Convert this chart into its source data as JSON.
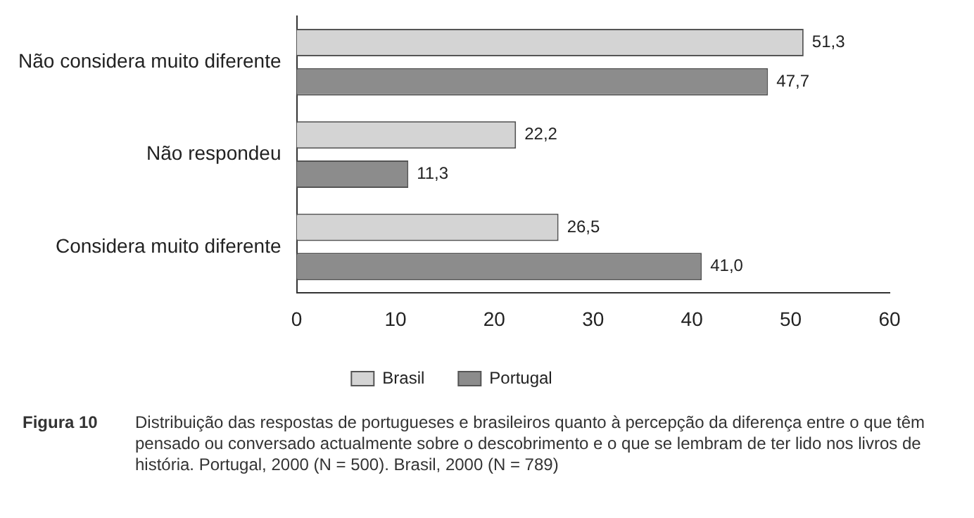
{
  "chart_data": {
    "type": "bar",
    "orientation": "horizontal",
    "categories": [
      "Não considera muito diferente",
      "Não respondeu",
      "Considera muito diferente"
    ],
    "series": [
      {
        "name": "Brasil",
        "color": "#d4d4d4",
        "values": [
          51.3,
          22.2,
          26.5
        ],
        "value_labels": [
          "51,3",
          "22,2",
          "26,5"
        ]
      },
      {
        "name": "Portugal",
        "color": "#8c8c8c",
        "values": [
          47.7,
          11.3,
          41.0
        ],
        "value_labels": [
          "47,7",
          "11,3",
          "41,0"
        ]
      }
    ],
    "xlim": [
      0,
      60
    ],
    "xticks": [
      0,
      10,
      20,
      30,
      40,
      50,
      60
    ],
    "grid": false,
    "legend": "bottom",
    "annotations": [
      "Figura 10",
      "Distribuição das respostas de portugueses e brasileiros quanto à percepção da diferença entre o que têm pensado ou conversado actualmente sobre o descobrimento e o que se lembram de ter lido nos livros de história. Portugal, 2000 (N = 500). Brasil, 2000 (N = 789)"
    ]
  }
}
